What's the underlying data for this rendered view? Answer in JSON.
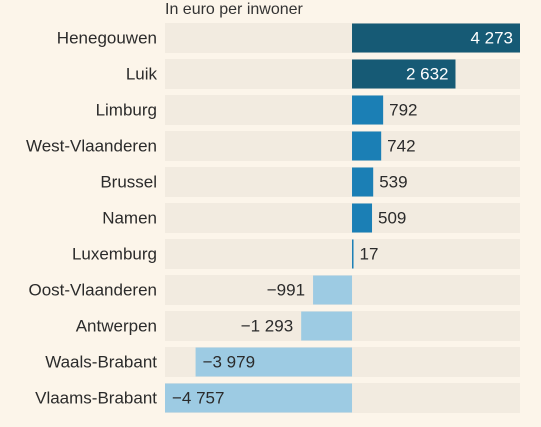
{
  "chart_data": {
    "type": "bar",
    "orientation": "horizontal",
    "subtitle": "In euro per inwoner",
    "categories": [
      "Henegouwen",
      "Luik",
      "Limburg",
      "West-Vlaanderen",
      "Brussel",
      "Namen",
      "Luxemburg",
      "Oost-Vlaanderen",
      "Antwerpen",
      "Waals-Brabant",
      "Vlaams-Brabant"
    ],
    "values": [
      4273,
      2632,
      792,
      742,
      539,
      509,
      17,
      -991,
      -1293,
      -3979,
      -4757
    ],
    "value_labels": [
      "4 273",
      "2 632",
      "792",
      "742",
      "539",
      "509",
      "17",
      "−991",
      "−1 293",
      "−3 979",
      "−4 757"
    ],
    "xlim": [
      -4757,
      4273
    ],
    "grid": false,
    "legend": "none",
    "colors": {
      "background": "#fcf5ea",
      "row_background": "#f2ebe0",
      "dark_positive": "#165a75",
      "positive": "#1b7fb5",
      "negative": "#9dcbe3",
      "label_on_dark": "#ffffff",
      "label_default": "#2b2b2b"
    }
  }
}
